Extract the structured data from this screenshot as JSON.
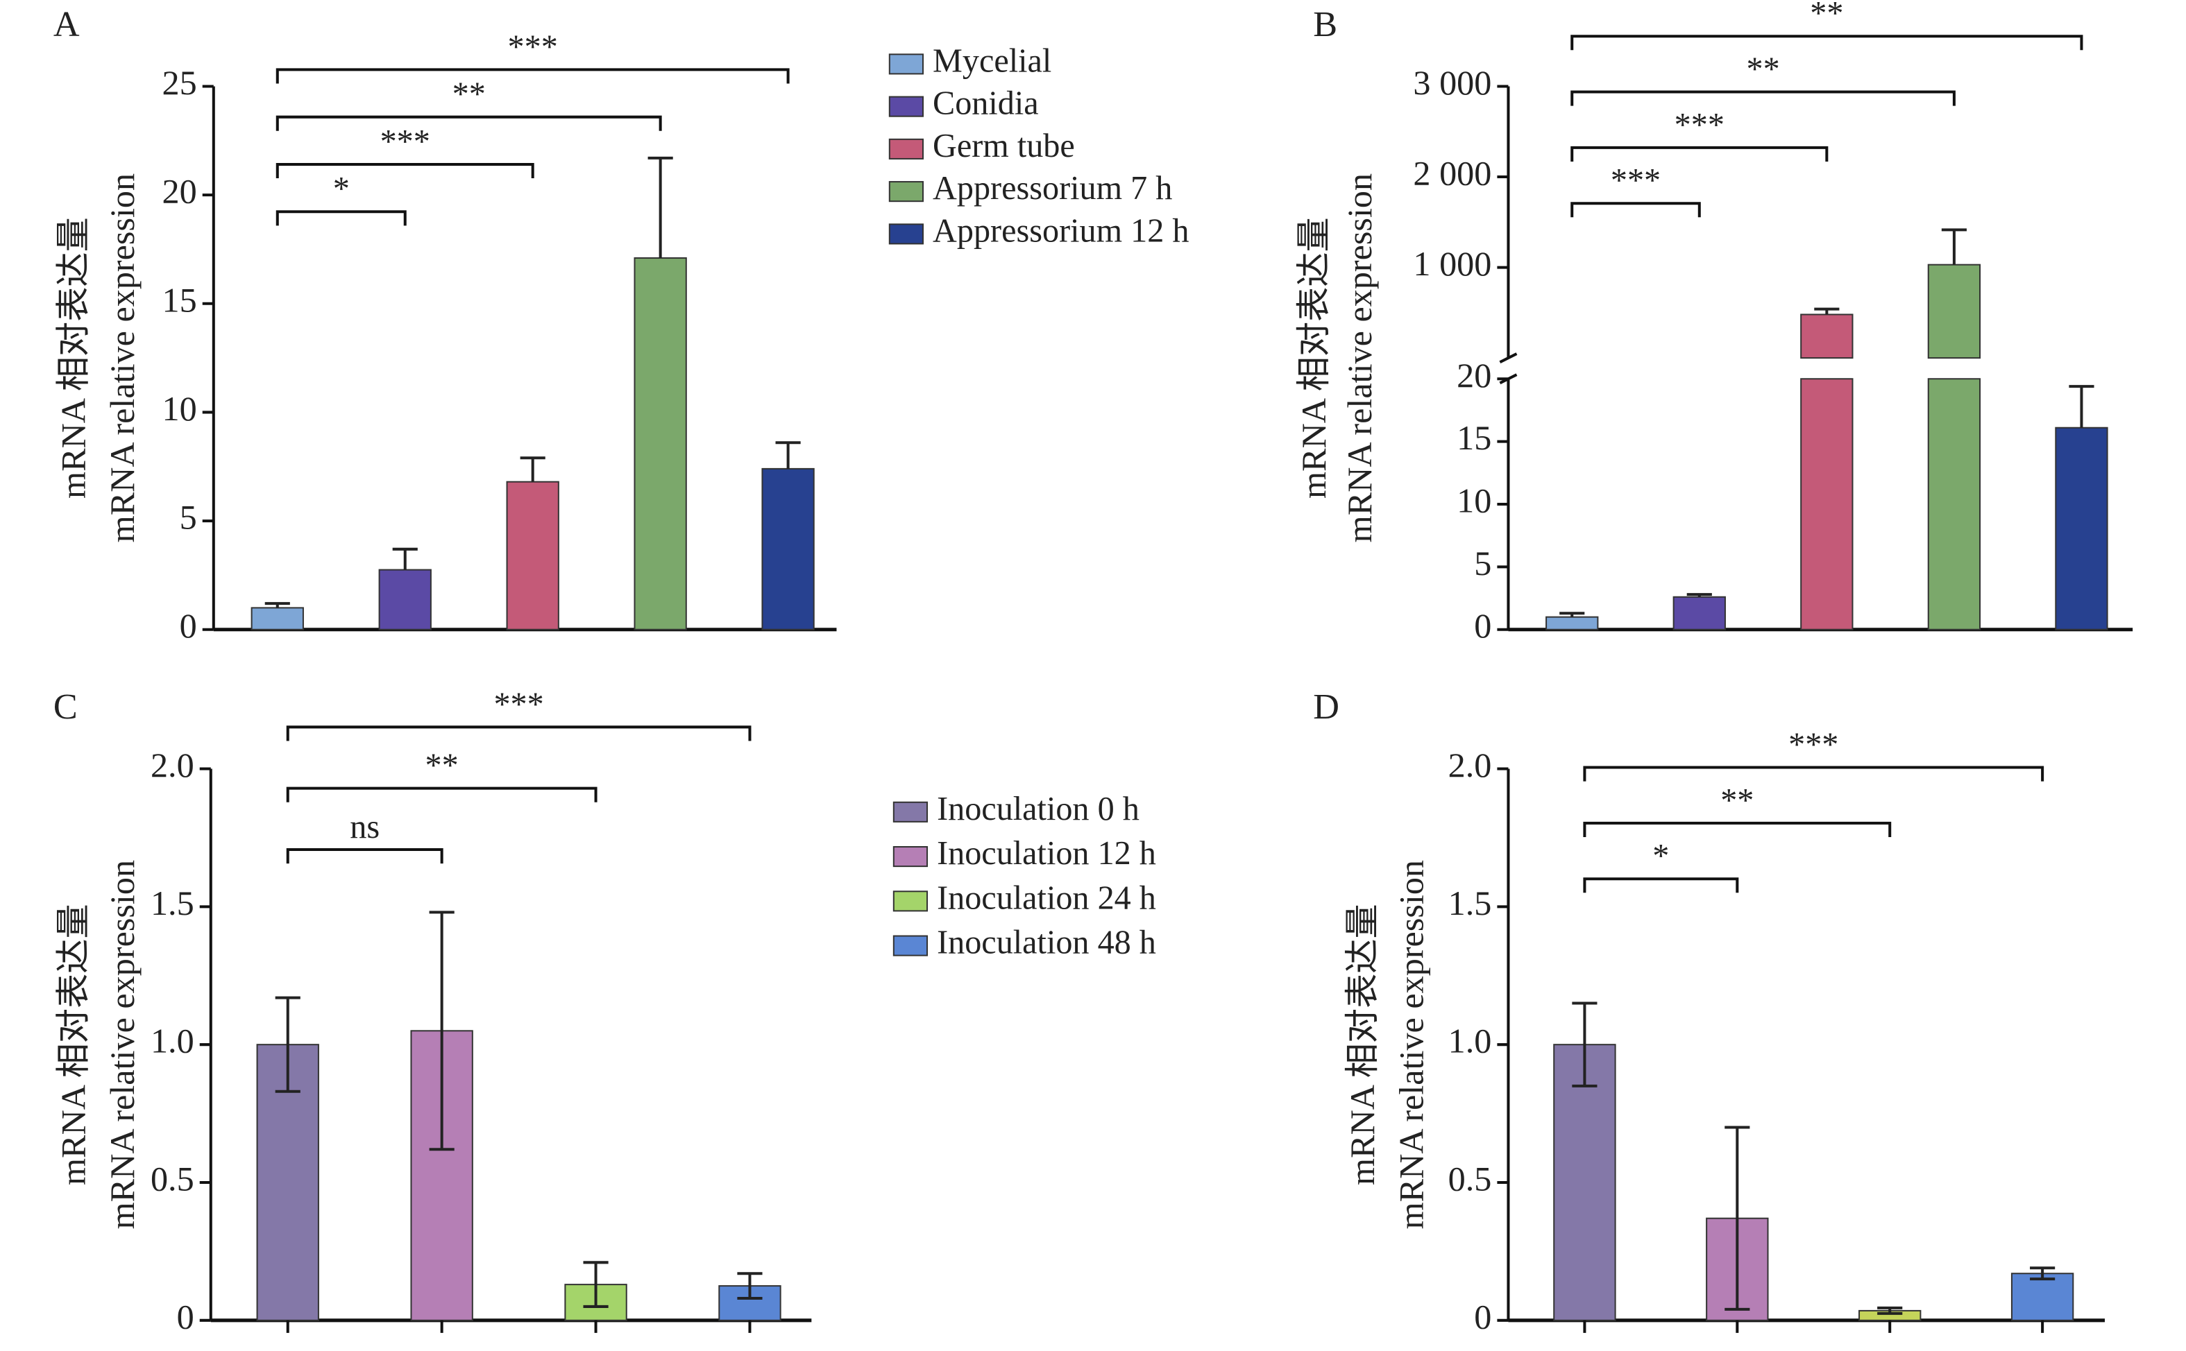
{
  "chart_data": [
    {
      "type": "bar",
      "panel_label": "A",
      "ylabel": [
        "mRNA 相对表达量",
        "mRNA relative expression"
      ],
      "categories": [
        "Mycelial",
        "Conidia",
        "Germ tube",
        "Appressorium 7 h",
        "Appressorium 12 h"
      ],
      "colors": [
        "#7ea6d6",
        "#5b4aa5",
        "#c45a78",
        "#7ba86b",
        "#274190"
      ],
      "values": [
        1.0,
        2.75,
        6.8,
        17.1,
        7.4
      ],
      "errors": [
        0.2,
        0.95,
        1.1,
        4.6,
        1.2
      ],
      "error_bars": "upper",
      "ylim": [
        0,
        25
      ],
      "yticks": [
        0,
        5,
        10,
        15,
        20,
        25
      ],
      "legend": true,
      "comparisons": [
        {
          "groups": [
            "Mycelial",
            "Conidia"
          ],
          "label": "*"
        },
        {
          "groups": [
            "Mycelial",
            "Germ tube"
          ],
          "label": "***"
        },
        {
          "groups": [
            "Mycelial",
            "Appressorium 7 h"
          ],
          "label": "**"
        },
        {
          "groups": [
            "Mycelial",
            "Appressorium 12 h"
          ],
          "label": "***"
        }
      ]
    },
    {
      "type": "bar",
      "panel_label": "B",
      "ylabel": [
        "mRNA 相对表达量",
        "mRNA relative expression"
      ],
      "categories": [
        "Mycelial",
        "Conidia",
        "Germ tube",
        "Appressorium 7 h",
        "Appressorium 12 h"
      ],
      "colors": [
        "#7ea6d6",
        "#5b4aa5",
        "#c45a78",
        "#7ba86b",
        "#274190"
      ],
      "values": [
        1.0,
        2.6,
        480,
        1030,
        16.1
      ],
      "errors": [
        0.3,
        0.2,
        60,
        385,
        3.3
      ],
      "error_bars": "upper",
      "ylim": [
        0,
        20
      ],
      "yticks": [
        0,
        5,
        10,
        15,
        20
      ],
      "y_break": {
        "ylim": [
          0,
          3000
        ],
        "yticks": [
          {
            "value": 1000,
            "label": "1 000"
          },
          {
            "value": 2000,
            "label": "2 000"
          },
          {
            "value": 3000,
            "label": "3 000"
          }
        ]
      },
      "legend": false,
      "comparisons": [
        {
          "groups": [
            "Mycelial",
            "Conidia"
          ],
          "label": "***"
        },
        {
          "groups": [
            "Mycelial",
            "Germ tube"
          ],
          "label": "***"
        },
        {
          "groups": [
            "Mycelial",
            "Appressorium 7 h"
          ],
          "label": "**"
        },
        {
          "groups": [
            "Mycelial",
            "Appressorium 12 h"
          ],
          "label": "**"
        }
      ]
    },
    {
      "type": "bar",
      "panel_label": "C",
      "ylabel": [
        "mRNA 相对表达量",
        "mRNA relative expression"
      ],
      "categories": [
        "Inoculation 0 h",
        "Inoculation 12 h",
        "Inoculation 24 h",
        "Inoculation 48 h"
      ],
      "colors": [
        "#8478a8",
        "#b57fb5",
        "#a4d46a",
        "#5a86d4"
      ],
      "values": [
        1.0,
        1.05,
        0.13,
        0.125
      ],
      "errors": [
        0.17,
        0.43,
        0.08,
        0.045
      ],
      "error_bars": "both",
      "ylim": [
        0,
        2.0
      ],
      "yticks": [
        0,
        0.5,
        {
          "value": 1.0,
          "label": "1.0"
        },
        1.5,
        {
          "value": 2.0,
          "label": "2.0"
        }
      ],
      "legend": true,
      "comparisons": [
        {
          "groups": [
            "Inoculation 0 h",
            "Inoculation 12 h"
          ],
          "label": "ns"
        },
        {
          "groups": [
            "Inoculation 0 h",
            "Inoculation 24 h"
          ],
          "label": "**"
        },
        {
          "groups": [
            "Inoculation 0 h",
            "Inoculation 48 h"
          ],
          "label": "***"
        }
      ]
    },
    {
      "type": "bar",
      "panel_label": "D",
      "ylabel": [
        "mRNA 相对表达量",
        "mRNA relative expression"
      ],
      "categories": [
        "Inoculation 0 h",
        "Inoculation 12 h",
        "Inoculation 24 h",
        "Inoculation 48 h"
      ],
      "colors": [
        "#8478a8",
        "#b57fb5",
        "#c5d45a",
        "#5a86d4"
      ],
      "values": [
        1.0,
        0.37,
        0.035,
        0.17
      ],
      "errors": [
        0.15,
        0.33,
        0.01,
        0.02
      ],
      "error_bars": "both",
      "ylim": [
        0,
        2.0
      ],
      "yticks": [
        0,
        0.5,
        {
          "value": 1.0,
          "label": "1.0"
        },
        1.5,
        {
          "value": 2.0,
          "label": "2.0"
        }
      ],
      "legend": false,
      "comparisons": [
        {
          "groups": [
            "Inoculation 0 h",
            "Inoculation 12 h"
          ],
          "label": "*"
        },
        {
          "groups": [
            "Inoculation 0 h",
            "Inoculation 24 h"
          ],
          "label": "**"
        },
        {
          "groups": [
            "Inoculation 0 h",
            "Inoculation 48 h"
          ],
          "label": "***"
        }
      ]
    }
  ]
}
